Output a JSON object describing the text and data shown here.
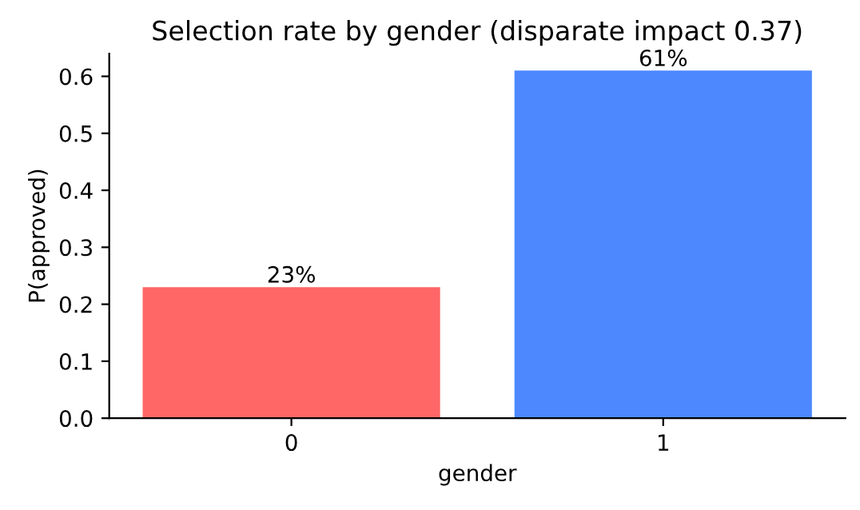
{
  "chart_data": {
    "type": "bar",
    "title": "Selection rate by gender (disparate impact 0.37)",
    "xlabel": "gender",
    "ylabel": "P(approved)",
    "categories": [
      "0",
      "1"
    ],
    "values": [
      0.23,
      0.61
    ],
    "colors": [
      "#ff6666",
      "#4d88ff"
    ],
    "value_labels": [
      "23%",
      "61%"
    ],
    "ylim": [
      0,
      0.64
    ],
    "yticks": [
      {
        "value": 0,
        "label": "0.0"
      },
      {
        "value": 0.1,
        "label": "0.1"
      },
      {
        "value": 0.2,
        "label": "0.2"
      },
      {
        "value": 0.3,
        "label": "0.3"
      },
      {
        "value": 0.4,
        "label": "0.4"
      },
      {
        "value": 0.5,
        "label": "0.5"
      },
      {
        "value": 0.6,
        "label": "0.6"
      }
    ],
    "grid": false,
    "legend": false
  }
}
